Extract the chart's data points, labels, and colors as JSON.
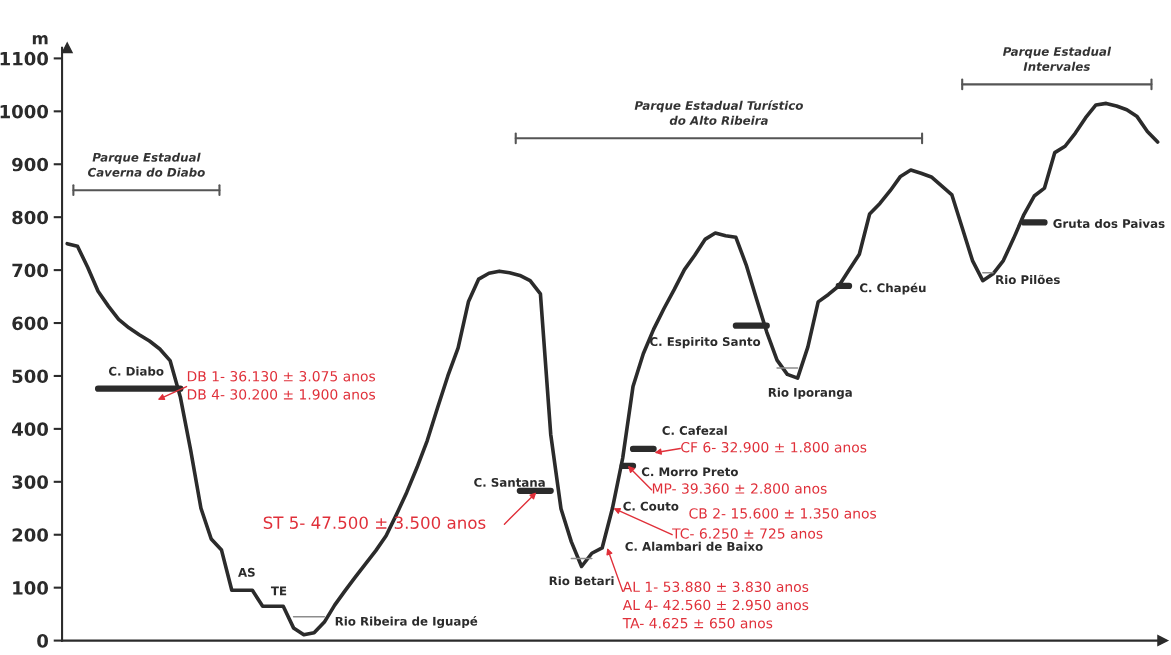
{
  "chart_data": {
    "type": "line",
    "ylabel": "m",
    "ylim": [
      0,
      1120
    ],
    "yticks": [
      0,
      100,
      200,
      300,
      400,
      500,
      600,
      700,
      800,
      900,
      1000,
      1100
    ],
    "tick_labels": "y",
    "grid": false,
    "marker": "none",
    "line_style": "solid",
    "categories": [
      null,
      null,
      null,
      null,
      null,
      null,
      null,
      null,
      null,
      null,
      null,
      null,
      null,
      null,
      null,
      null,
      null,
      null,
      null,
      null,
      null,
      null,
      null,
      null,
      null,
      null,
      null,
      null,
      null,
      null,
      null,
      null,
      null,
      null,
      null,
      null,
      null,
      null,
      null,
      null,
      null,
      null,
      null,
      null,
      null,
      null,
      null,
      null,
      null,
      null,
      null,
      null,
      null,
      null,
      null,
      null,
      null,
      null,
      null,
      null,
      null,
      null,
      null,
      null,
      null,
      null,
      null,
      null,
      null,
      null,
      null,
      null,
      null,
      null,
      null,
      null,
      null,
      null,
      null,
      null,
      null,
      null,
      null,
      null,
      null,
      null,
      null,
      null,
      null,
      null,
      null,
      null,
      null,
      null,
      null,
      null,
      null,
      null,
      null,
      null,
      null,
      null,
      null,
      null,
      null,
      null,
      null
    ],
    "series": [
      {
        "color": "#2b2b2b",
        "values": [
          750,
          745,
          705,
          660,
          632,
          607,
          591,
          578,
          566,
          551,
          529,
          460,
          360,
          250,
          192,
          171,
          95,
          95,
          95,
          65,
          65,
          65,
          24,
          11,
          15,
          35,
          67,
          94,
          120,
          145,
          170,
          198,
          238,
          280,
          327,
          378,
          440,
          500,
          553,
          640,
          683,
          694,
          698,
          695,
          690,
          680,
          655,
          390,
          249,
          187,
          140,
          165,
          175,
          250,
          345,
          480,
          542,
          588,
          627,
          663,
          701,
          728,
          758,
          770,
          765,
          762,
          710,
          646,
          583,
          530,
          503,
          496,
          555,
          640,
          654,
          670,
          700,
          730,
          806,
          826,
          850,
          877,
          889,
          883,
          876,
          859,
          842,
          780,
          718,
          680,
          693,
          718,
          760,
          805,
          840,
          855,
          922,
          934,
          959,
          988,
          1012,
          1015,
          1010,
          1003,
          990,
          962,
          942
        ]
      },
      {
        "color": "#2b2b2b",
        "values": [
          null,
          null,
          null,
          476,
          476,
          476,
          476,
          476,
          476,
          476,
          476,
          476,
          null,
          null,
          null,
          null,
          null,
          null,
          null,
          null,
          null,
          null,
          null,
          null,
          null,
          null,
          null,
          null,
          null,
          null,
          null,
          null,
          null,
          null,
          null,
          null,
          null,
          null,
          null,
          null,
          null,
          null,
          null,
          null,
          283,
          283,
          283,
          283,
          null,
          null,
          null,
          null,
          null,
          null,
          null,
          362,
          362,
          362,
          null,
          null,
          null,
          null,
          null,
          null,
          null,
          595,
          595,
          595,
          595,
          null,
          null,
          null,
          null,
          null,
          null,
          670,
          670,
          null,
          null,
          null,
          null,
          null,
          null,
          null,
          null,
          null,
          null,
          null,
          null,
          null,
          null,
          null,
          null,
          790,
          790,
          790,
          null,
          null,
          null,
          null,
          null,
          null,
          null,
          null,
          null,
          null,
          null
        ]
      },
      {
        "color": "#2b2b2b",
        "values": [
          null,
          null,
          null,
          null,
          null,
          null,
          null,
          null,
          null,
          null,
          null,
          null,
          null,
          null,
          null,
          null,
          null,
          null,
          null,
          null,
          null,
          null,
          null,
          null,
          null,
          null,
          null,
          null,
          null,
          null,
          null,
          null,
          null,
          null,
          null,
          null,
          null,
          null,
          null,
          null,
          null,
          null,
          null,
          null,
          null,
          null,
          null,
          null,
          null,
          null,
          null,
          null,
          null,
          null,
          330,
          330,
          null,
          null,
          null,
          null,
          null,
          null,
          null,
          null,
          null,
          null,
          null,
          null,
          null,
          null,
          null,
          null,
          null,
          null,
          null,
          null,
          null,
          null,
          null,
          null,
          null,
          null,
          null,
          null,
          null,
          null,
          null,
          null,
          null,
          null,
          null,
          null,
          null,
          null,
          null,
          null,
          null,
          null,
          null,
          null,
          null,
          null,
          null,
          null,
          null,
          null,
          null
        ]
      },
      {
        "color": "#8c8c8c",
        "values": [
          null,
          null,
          null,
          null,
          null,
          null,
          null,
          null,
          null,
          null,
          null,
          null,
          null,
          null,
          null,
          null,
          null,
          null,
          null,
          null,
          null,
          null,
          45,
          45,
          45,
          45,
          null,
          null,
          null,
          null,
          null,
          null,
          null,
          null,
          null,
          null,
          null,
          null,
          null,
          null,
          null,
          null,
          null,
          null,
          null,
          null,
          null,
          null,
          null,
          155,
          155,
          155,
          null,
          null,
          null,
          null,
          null,
          null,
          null,
          null,
          null,
          null,
          null,
          null,
          null,
          null,
          null,
          null,
          null,
          515,
          515,
          515,
          null,
          null,
          null,
          null,
          null,
          null,
          null,
          null,
          null,
          null,
          null,
          null,
          null,
          null,
          null,
          null,
          null,
          695,
          695,
          null,
          null,
          null,
          null,
          null,
          null,
          null,
          null,
          null,
          null,
          null,
          null,
          null,
          null,
          null,
          null
        ]
      }
    ],
    "annotations": [
      "C. Diabo",
      "AS",
      "TE",
      "Rio Ribeira de Iguapé",
      "C. Santana",
      "Rio Betari",
      "C. Alambari de Baixo",
      "C. Couto",
      "C. Morro Preto",
      "C. Cafezal",
      "C. Espirito Santo",
      "Rio Iporanga",
      "C. Chapéu",
      "Rio Pilões",
      "Gruta dos Paivas",
      "DB 1- 36.130 ± 3.075 anos\nDB 4- 30.200 ± 1.900 anos",
      "ST 5- 47.500 ± 3.500 anos",
      "CF 6- 32.900 ± 1.800 anos",
      "MP- 39.360 ± 2.800 anos",
      "CB 2- 15.600 ± 1.350 anos",
      "TC- 6.250 ± 725 anos",
      "AL 1- 53.880 ± 3.830 anos\nAL 4- 42.560 ± 2.950 anos\nTA- 4.625 ± 650 anos",
      "Parque Estadual\nCaverna do Diabo",
      "Parque Estadual Turístico\ndo Alto Ribeira",
      "Parque Estadual\nIntervales"
    ]
  }
}
